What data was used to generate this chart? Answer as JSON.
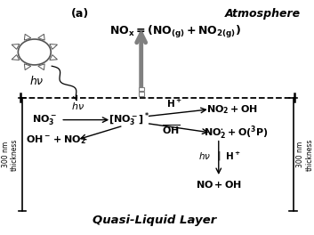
{
  "title_label": "(a)",
  "atmosphere_label": "Atmosphere",
  "quasi_liquid_label": "Quasi-Liquid Layer",
  "thickness_label": "300 nm\nthickness",
  "dashed_line_y": 0.585,
  "fig_width": 3.53,
  "fig_height": 2.64,
  "fig_dpi": 100
}
